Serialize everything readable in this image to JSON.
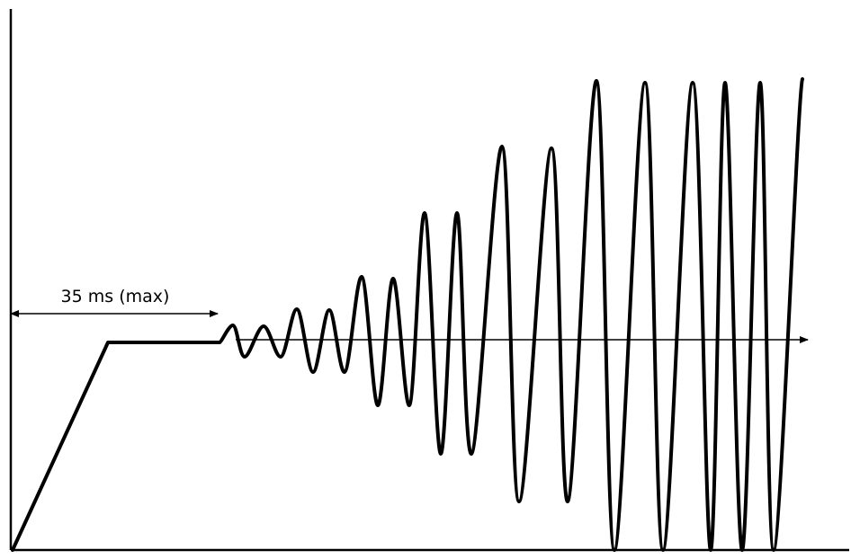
{
  "diagram": {
    "duration_label": "35 ms (max)"
  },
  "colors": {
    "line": "#000000",
    "background": "#ffffff"
  }
}
